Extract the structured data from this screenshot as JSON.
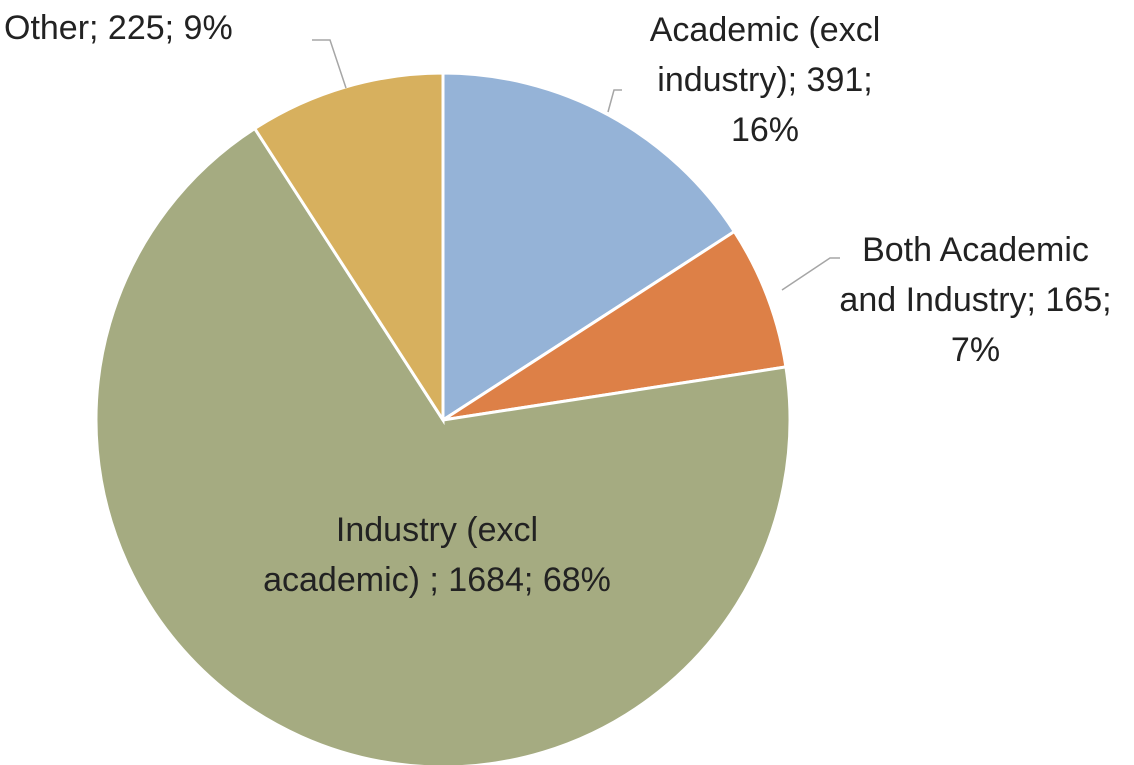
{
  "chart_data": {
    "type": "pie",
    "values": [
      391,
      165,
      1684,
      225
    ],
    "value_labels": [
      "Academic (excl industry); 391; 16%",
      "Both Academic and Industry; 165; 7%",
      "Industry (excl academic) ; 1684; 68%",
      "Other; 225; 9%"
    ],
    "colors": [
      "#95b3d7",
      "#dd8047",
      "#a5ab81",
      "#d7b05e"
    ]
  }
}
